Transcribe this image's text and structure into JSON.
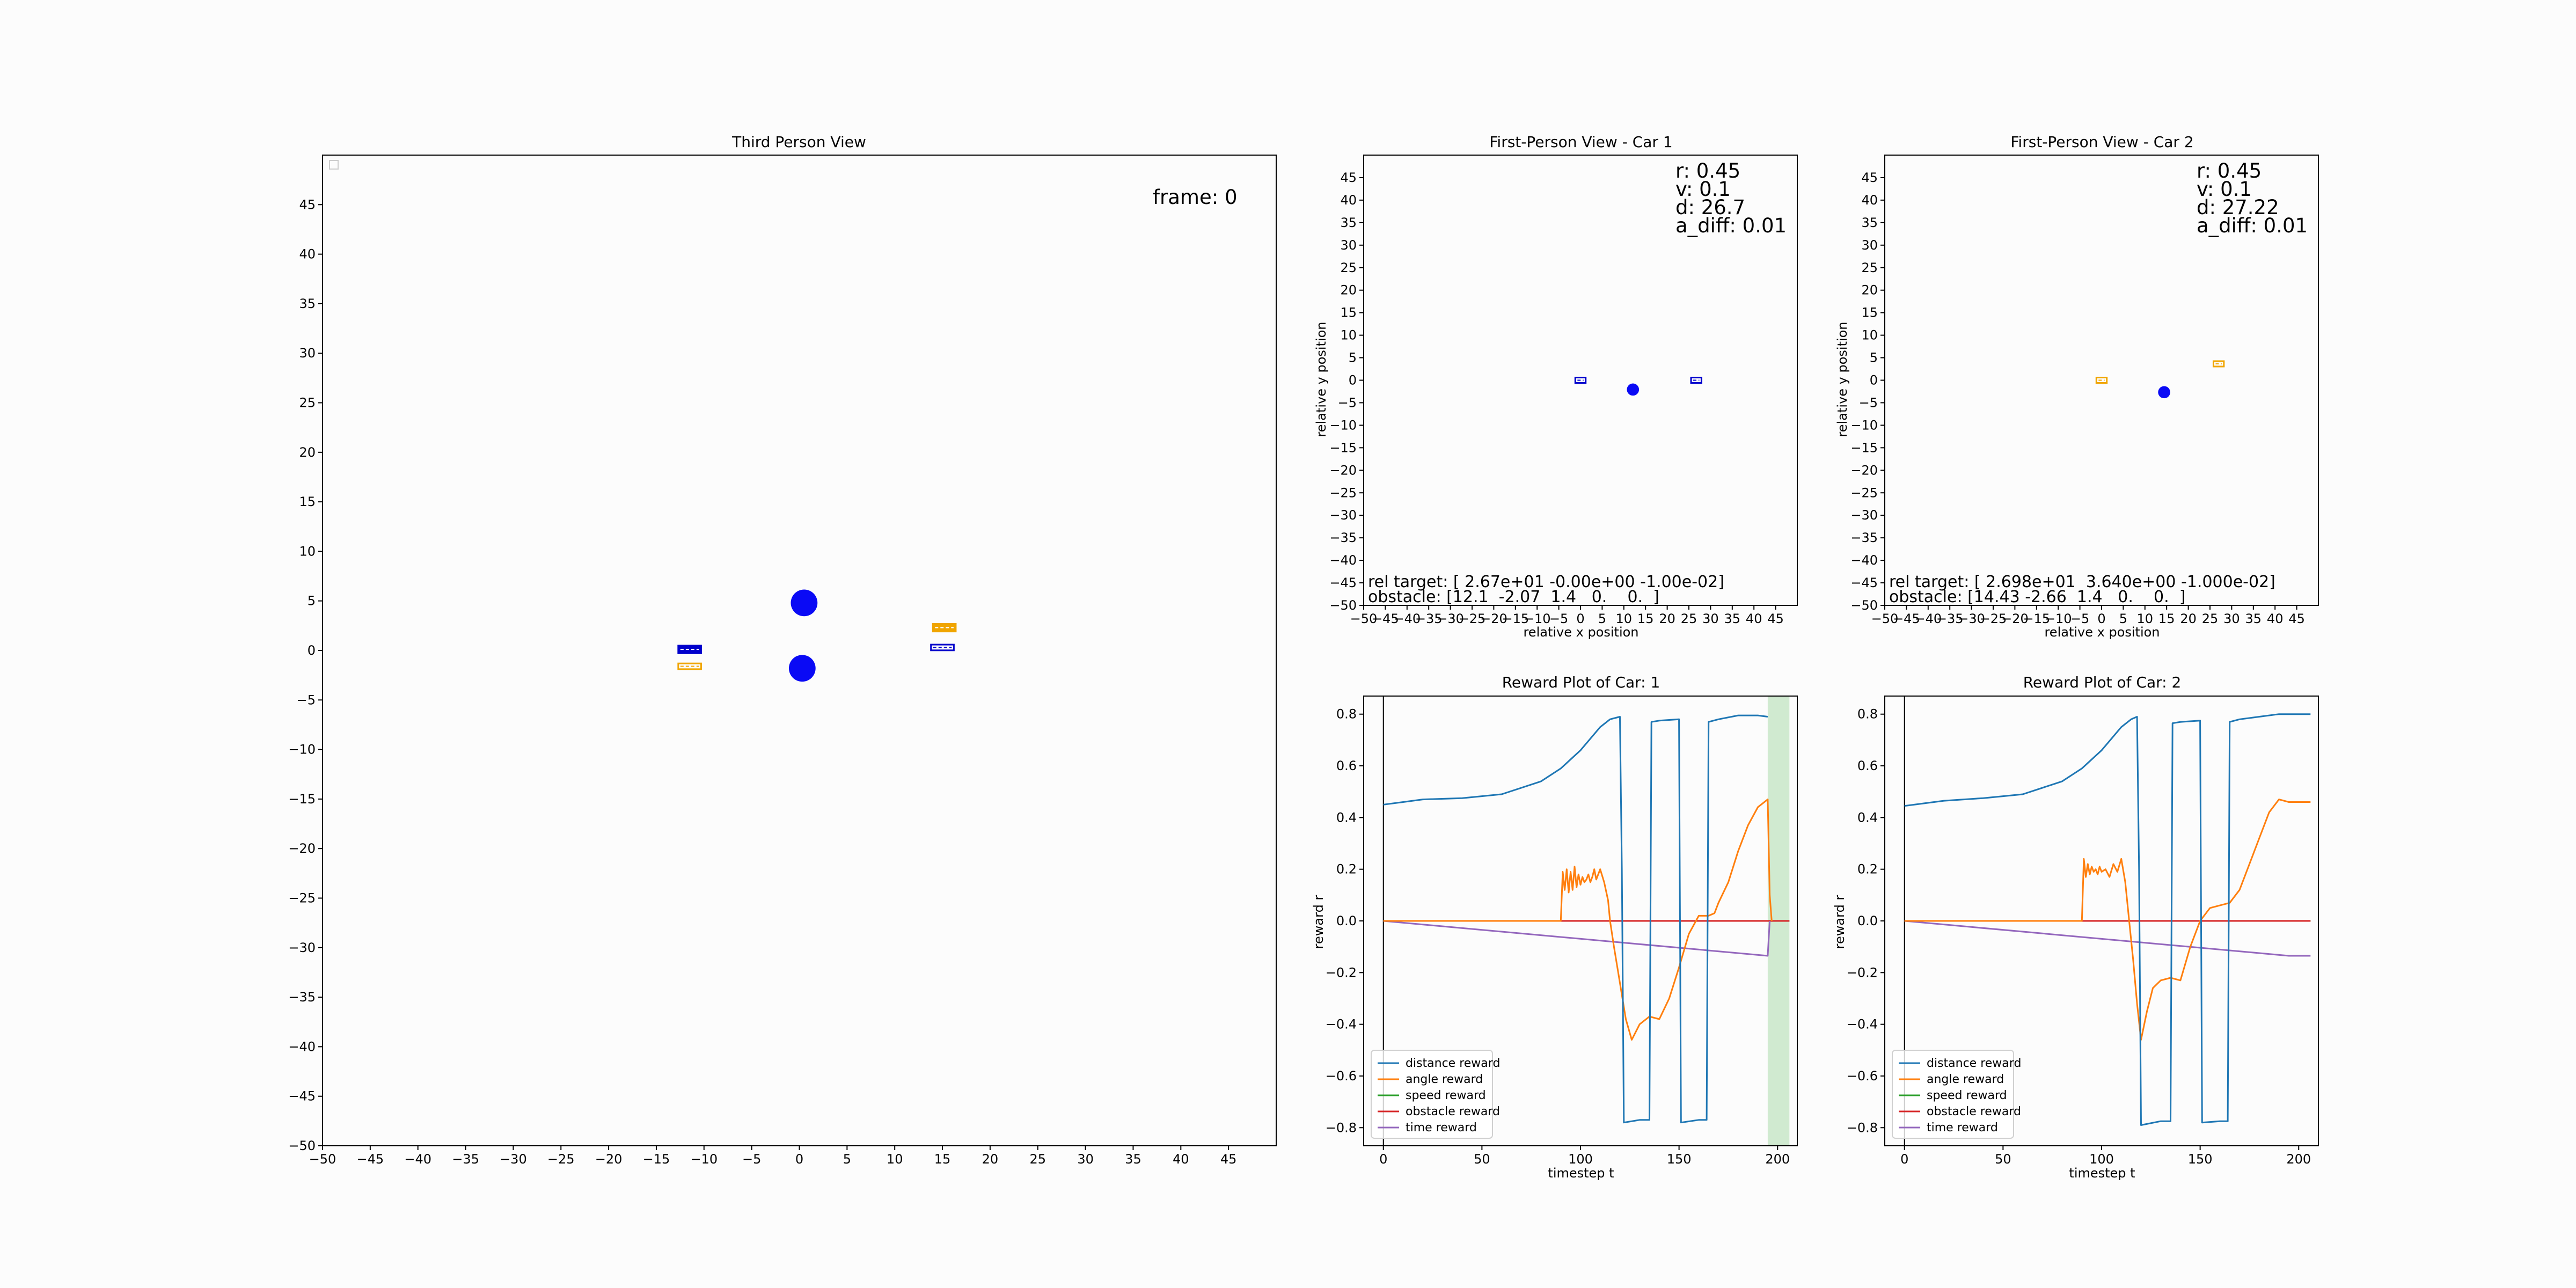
{
  "colors": {
    "distance": "#1f77b4",
    "angle": "#ff7f0e",
    "speed": "#2ca02c",
    "obstacle": "#d62728",
    "time": "#9467bd",
    "car_blue": "#0000cc",
    "car_orange": "#f0a500",
    "obstacle_blue": "#0a0af5",
    "highlight": "#c8e6c8"
  },
  "chart_data": [
    {
      "id": "third",
      "type": "scatter",
      "title": "Third Person View",
      "xlim": [
        -50,
        50
      ],
      "ylim": [
        -50,
        50
      ],
      "xticks": [
        -50,
        -45,
        -40,
        -35,
        -30,
        -25,
        -20,
        -15,
        -10,
        -5,
        0,
        5,
        10,
        15,
        20,
        25,
        30,
        35,
        40,
        45
      ],
      "yticks": [
        -50,
        -45,
        -40,
        -35,
        -30,
        -25,
        -20,
        -15,
        -10,
        -5,
        0,
        5,
        10,
        15,
        20,
        25,
        30,
        35,
        40,
        45
      ],
      "frame_label": "frame: 0",
      "obstacles": [
        {
          "x": 0.5,
          "y": 4.8,
          "r": 1.4
        },
        {
          "x": 0.3,
          "y": -1.8,
          "r": 1.4
        }
      ],
      "cars": [
        {
          "x": -11.5,
          "y": 0.1,
          "w": 2.4,
          "h": 0.8,
          "color": "blue",
          "filled": true
        },
        {
          "x": -11.5,
          "y": -1.6,
          "w": 2.4,
          "h": 0.6,
          "color": "orange",
          "filled": false
        },
        {
          "x": 15.2,
          "y": 2.3,
          "w": 2.4,
          "h": 0.8,
          "color": "orange",
          "filled": true
        },
        {
          "x": 15.0,
          "y": 0.3,
          "w": 2.4,
          "h": 0.6,
          "color": "blue",
          "filled": false
        }
      ]
    },
    {
      "id": "fp1",
      "type": "scatter",
      "title": "First-Person View - Car 1",
      "xlabel": "relative x position",
      "ylabel": "relative y position",
      "xlim": [
        -50,
        50
      ],
      "ylim": [
        -50,
        50
      ],
      "xticks": [
        -50,
        -45,
        -40,
        -35,
        -30,
        -25,
        -20,
        -15,
        -10,
        -5,
        0,
        5,
        10,
        15,
        20,
        25,
        30,
        35,
        40,
        45
      ],
      "yticks": [
        -50,
        -45,
        -40,
        -35,
        -30,
        -25,
        -20,
        -15,
        -10,
        -5,
        0,
        5,
        10,
        15,
        20,
        25,
        30,
        35,
        40,
        45
      ],
      "info": [
        "r: 0.45",
        "v: 0.1",
        "d: 26.7",
        "a_diff: 0.01"
      ],
      "rel_target": "rel target: [ 2.67e+01 -0.00e+00 -1.00e-02]",
      "obstacle_text": "obstacle: [12.1  -2.07  1.4   0.    0.  ]",
      "obstacles": [
        {
          "x": 12.1,
          "y": -2.07,
          "r": 1.4
        }
      ],
      "cars": [
        {
          "x": 0,
          "y": 0,
          "w": 2.4,
          "h": 0.8,
          "color": "blue",
          "filled": false
        },
        {
          "x": 26.7,
          "y": 0,
          "w": 2.4,
          "h": 0.8,
          "color": "blue",
          "filled": false
        }
      ]
    },
    {
      "id": "fp2",
      "type": "scatter",
      "title": "First-Person View - Car 2",
      "xlabel": "relative x position",
      "ylabel": "relative y position",
      "xlim": [
        -50,
        50
      ],
      "ylim": [
        -50,
        50
      ],
      "xticks": [
        -50,
        -45,
        -40,
        -35,
        -30,
        -25,
        -20,
        -15,
        -10,
        -5,
        0,
        5,
        10,
        15,
        20,
        25,
        30,
        35,
        40,
        45
      ],
      "yticks": [
        -50,
        -45,
        -40,
        -35,
        -30,
        -25,
        -20,
        -15,
        -10,
        -5,
        0,
        5,
        10,
        15,
        20,
        25,
        30,
        35,
        40,
        45
      ],
      "info": [
        "r: 0.45",
        "v: 0.1",
        "d: 27.22",
        "a_diff: 0.01"
      ],
      "rel_target": "rel target: [ 2.698e+01  3.640e+00 -1.000e-02]",
      "obstacle_text": "obstacle: [14.43 -2.66  1.4   0.    0.  ]",
      "obstacles": [
        {
          "x": 14.43,
          "y": -2.66,
          "r": 1.4
        }
      ],
      "cars": [
        {
          "x": 0,
          "y": 0,
          "w": 2.4,
          "h": 0.8,
          "color": "orange",
          "filled": false
        },
        {
          "x": 27.0,
          "y": 3.64,
          "w": 2.4,
          "h": 0.8,
          "color": "orange",
          "filled": false
        }
      ]
    },
    {
      "id": "rew1",
      "type": "line",
      "title": "Reward Plot of Car: 1",
      "xlabel": "timestep t",
      "ylabel": "reward r",
      "xlim": [
        -10,
        210
      ],
      "ylim": [
        -0.87,
        0.87
      ],
      "xticks": [
        0,
        50,
        100,
        150,
        200
      ],
      "yticks": [
        -0.8,
        -0.6,
        -0.4,
        -0.2,
        0.0,
        0.2,
        0.4,
        0.6,
        0.8
      ],
      "ytick_labels": [
        "−0.8",
        "−0.6",
        "−0.4",
        "−0.2",
        "0.0",
        "0.2",
        "0.4",
        "0.6",
        "0.8"
      ],
      "vline_x": 0,
      "highlight_span": [
        195,
        206
      ],
      "legend": [
        "distance reward",
        "angle reward",
        "speed reward",
        "obstacle reward",
        "time reward"
      ],
      "series": [
        {
          "name": "distance reward",
          "x": [
            0,
            10,
            20,
            40,
            60,
            80,
            90,
            100,
            110,
            115,
            120,
            121,
            122,
            130,
            135,
            136,
            140,
            150,
            151,
            160,
            164,
            165,
            170,
            180,
            190,
            195
          ],
          "y": [
            0.45,
            0.46,
            0.47,
            0.475,
            0.49,
            0.54,
            0.59,
            0.66,
            0.75,
            0.78,
            0.79,
            0.2,
            -0.78,
            -0.77,
            -0.77,
            0.77,
            0.775,
            0.78,
            -0.78,
            -0.77,
            -0.77,
            0.77,
            0.78,
            0.795,
            0.795,
            0.79
          ]
        },
        {
          "name": "angle reward",
          "x": [
            0,
            90,
            91,
            92,
            93,
            94,
            95,
            96,
            97,
            98,
            99,
            100,
            101,
            102,
            103,
            104,
            105,
            106,
            107,
            108,
            110,
            112,
            114,
            115,
            117,
            120,
            123,
            126,
            130,
            135,
            140,
            145,
            150,
            155,
            160,
            165,
            168,
            170,
            175,
            180,
            185,
            190,
            195,
            196,
            197
          ],
          "y": [
            0,
            0,
            0.19,
            0.12,
            0.2,
            0.11,
            0.19,
            0.12,
            0.21,
            0.13,
            0.18,
            0.14,
            0.17,
            0.15,
            0.16,
            0.18,
            0.15,
            0.17,
            0.2,
            0.16,
            0.2,
            0.15,
            0.08,
            0.0,
            -0.1,
            -0.24,
            -0.38,
            -0.46,
            -0.4,
            -0.37,
            -0.38,
            -0.3,
            -0.18,
            -0.05,
            0.02,
            0.02,
            0.03,
            0.07,
            0.15,
            0.27,
            0.37,
            0.44,
            0.47,
            0.1,
            0.0
          ]
        },
        {
          "name": "speed reward",
          "x": [
            0,
            206
          ],
          "y": [
            0,
            0
          ]
        },
        {
          "name": "obstacle reward",
          "x": [
            0,
            206
          ],
          "y": [
            0,
            0
          ]
        },
        {
          "name": "time reward",
          "x": [
            0,
            195,
            196
          ],
          "y": [
            0,
            -0.135,
            0
          ]
        }
      ]
    },
    {
      "id": "rew2",
      "type": "line",
      "title": "Reward Plot of Car: 2",
      "xlabel": "timestep t",
      "ylabel": "reward r",
      "xlim": [
        -10,
        210
      ],
      "ylim": [
        -0.87,
        0.87
      ],
      "xticks": [
        0,
        50,
        100,
        150,
        200
      ],
      "yticks": [
        -0.8,
        -0.6,
        -0.4,
        -0.2,
        0.0,
        0.2,
        0.4,
        0.6,
        0.8
      ],
      "ytick_labels": [
        "−0.8",
        "−0.6",
        "−0.4",
        "−0.2",
        "0.0",
        "0.2",
        "0.4",
        "0.6",
        "0.8"
      ],
      "vline_x": 0,
      "legend": [
        "distance reward",
        "angle reward",
        "speed reward",
        "obstacle reward",
        "time reward"
      ],
      "series": [
        {
          "name": "distance reward",
          "x": [
            0,
            10,
            20,
            40,
            60,
            80,
            90,
            100,
            110,
            115,
            118,
            119,
            120,
            130,
            135,
            136,
            140,
            150,
            151,
            160,
            164,
            165,
            170,
            180,
            190,
            200,
            206
          ],
          "y": [
            0.445,
            0.455,
            0.465,
            0.475,
            0.49,
            0.54,
            0.59,
            0.66,
            0.75,
            0.78,
            0.79,
            0.2,
            -0.79,
            -0.775,
            -0.775,
            0.765,
            0.77,
            0.775,
            -0.78,
            -0.775,
            -0.775,
            0.77,
            0.78,
            0.79,
            0.8,
            0.8,
            0.8
          ]
        },
        {
          "name": "angle reward",
          "x": [
            0,
            90,
            91,
            92,
            93,
            94,
            95,
            96,
            97,
            98,
            99,
            100,
            102,
            104,
            106,
            108,
            110,
            112,
            114,
            116,
            118,
            120,
            123,
            126,
            130,
            135,
            140,
            145,
            150,
            155,
            160,
            165,
            170,
            175,
            180,
            185,
            190,
            195,
            200,
            206
          ],
          "y": [
            0,
            0,
            0.24,
            0.17,
            0.22,
            0.18,
            0.21,
            0.19,
            0.2,
            0.18,
            0.21,
            0.19,
            0.2,
            0.17,
            0.22,
            0.19,
            0.24,
            0.15,
            0.0,
            -0.15,
            -0.32,
            -0.46,
            -0.35,
            -0.26,
            -0.23,
            -0.22,
            -0.23,
            -0.1,
            0.0,
            0.05,
            0.06,
            0.07,
            0.12,
            0.22,
            0.32,
            0.42,
            0.47,
            0.46,
            0.46,
            0.46
          ]
        },
        {
          "name": "speed reward",
          "x": [
            0,
            206
          ],
          "y": [
            0,
            0
          ]
        },
        {
          "name": "obstacle reward",
          "x": [
            0,
            206
          ],
          "y": [
            0,
            0
          ]
        },
        {
          "name": "time reward",
          "x": [
            0,
            195,
            206
          ],
          "y": [
            0,
            -0.135,
            -0.135
          ]
        }
      ]
    }
  ]
}
